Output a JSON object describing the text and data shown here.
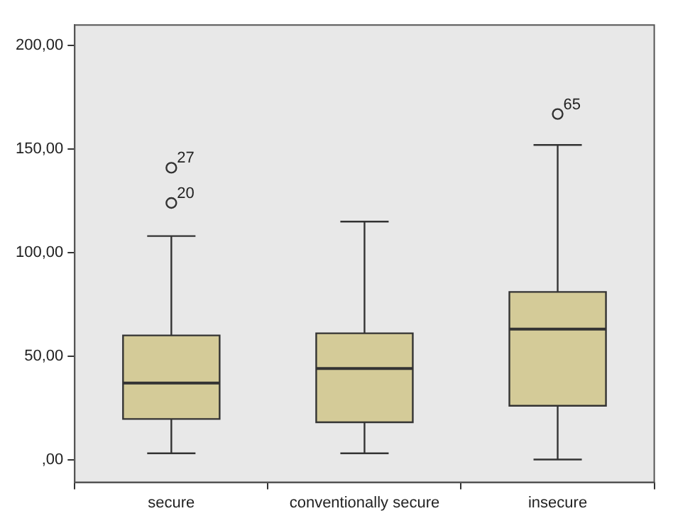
{
  "chart_data": {
    "type": "box",
    "categories": [
      "secure",
      "conventionally secure",
      "insecure"
    ],
    "boxes": [
      {
        "low": 3,
        "q1": 19.6,
        "median": 37,
        "q3": 60,
        "high": 108,
        "outliers": [
          124,
          141
        ]
      },
      {
        "low": 3,
        "q1": 18,
        "median": 44,
        "q3": 61,
        "high": 115
      },
      {
        "low": 0,
        "q1": 26,
        "median": 63,
        "q3": 81,
        "high": 152,
        "outliers": [
          167
        ]
      }
    ],
    "color": "#d4cb98",
    "ylim": [
      -11,
      210
    ],
    "yticks": [
      {
        "value": 0,
        "label": ",00"
      },
      {
        "value": 50,
        "label": "50,00"
      },
      {
        "value": 100,
        "label": "100,00"
      },
      {
        "value": 150,
        "label": "150,00"
      },
      {
        "value": 200,
        "label": "200,00"
      }
    ],
    "annotations": [
      "20",
      "27",
      "65"
    ],
    "grid": false,
    "legend": false
  }
}
